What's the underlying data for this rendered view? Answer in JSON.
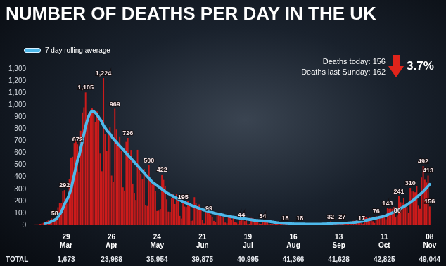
{
  "chart_data": {
    "type": "bar",
    "title": "NUMBER OF DEATHS PER DAY IN THE UK",
    "categories": [
      null,
      null,
      null,
      null,
      null,
      null,
      null,
      null,
      null,
      null,
      null,
      null,
      null,
      null,
      null,
      null,
      null,
      null,
      null,
      "29 Mar",
      null,
      null,
      null,
      null,
      null,
      null,
      null,
      null,
      null,
      null,
      null,
      null,
      null,
      null,
      null,
      null,
      null,
      null,
      null,
      null,
      null,
      null,
      null,
      null,
      null,
      null,
      null,
      "26 Apr",
      null,
      null,
      null,
      null,
      null,
      null,
      null,
      null,
      null,
      null,
      null,
      null,
      null,
      null,
      null,
      null,
      null,
      null,
      null,
      null,
      null,
      null,
      null,
      null,
      null,
      null,
      null,
      "24 May",
      null,
      null,
      null,
      null,
      null,
      null,
      null,
      null,
      null,
      null,
      null,
      null,
      null,
      null,
      null,
      null,
      null,
      null,
      null,
      null,
      null,
      null,
      null,
      null,
      null,
      null,
      null,
      "21 Jun",
      null,
      null,
      null,
      null,
      null,
      null,
      null,
      null,
      null,
      null,
      null,
      null,
      null,
      null,
      null,
      null,
      null,
      null,
      null,
      null,
      null,
      null,
      null,
      null,
      null,
      null,
      null,
      "19 Jul",
      null,
      null,
      null,
      null,
      null,
      null,
      null,
      null,
      null,
      null,
      null,
      null,
      null,
      null,
      null,
      null,
      null,
      null,
      null,
      null,
      null,
      null,
      null,
      null,
      null,
      null,
      null,
      "16 Aug",
      null,
      null,
      null,
      null,
      null,
      null,
      null,
      null,
      null,
      null,
      null,
      null,
      null,
      null,
      null,
      null,
      null,
      null,
      null,
      null,
      null,
      null,
      null,
      null,
      null,
      null,
      null,
      "13 Sep",
      null,
      null,
      null,
      null,
      null,
      null,
      null,
      null,
      null,
      null,
      null,
      null,
      null,
      null,
      null,
      null,
      null,
      null,
      null,
      null,
      null,
      null,
      null,
      null,
      null,
      null,
      null,
      "11 Oct",
      null,
      null,
      null,
      null,
      null,
      null,
      null,
      null,
      null,
      null,
      null,
      null,
      null,
      null,
      null,
      null,
      null,
      null,
      null,
      null,
      null,
      null,
      null,
      null,
      null,
      null,
      null,
      "08 Nov"
    ],
    "series": [
      {
        "type": "bar",
        "color": "#cc1b1b",
        "values": [
          1,
          2,
          1,
          10,
          14,
          20,
          16,
          33,
          40,
          33,
          56,
          48,
          58,
          74,
          149,
          186,
          183,
          284,
          292,
          209,
          180,
          381,
          563,
          569,
          684,
          708,
          672,
          439,
          786,
          938,
          981,
          1105,
          917,
          937,
          917,
          978,
          961,
          861,
          947,
          888,
          596,
          449,
          1224,
          759,
          616,
          768,
          813,
          413,
          360,
          969,
          795,
          674,
          739,
          621,
          315,
          288,
          693,
          726,
          539,
          626,
          346,
          269,
          210,
          627,
          494,
          428,
          384,
          468,
          170,
          160,
          500,
          363,
          338,
          351,
          282,
          118,
          121,
          134,
          422,
          377,
          324,
          215,
          113,
          111,
          224,
          259,
          176,
          257,
          204,
          77,
          55,
          195,
          155,
          151,
          202,
          181,
          36,
          38,
          233,
          184,
          135,
          173,
          128,
          43,
          15,
          120,
          110,
          99,
          86,
          70,
          36,
          25,
          89,
          96,
          89,
          67,
          67,
          22,
          16,
          85,
          85,
          48,
          68,
          28,
          21,
          11,
          38,
          44,
          66,
          34,
          40,
          11,
          7,
          60,
          59,
          27,
          23,
          39,
          14,
          7,
          34,
          38,
          40,
          36,
          12,
          8,
          5,
          16,
          10,
          14,
          12,
          7,
          5,
          3,
          18,
          12,
          10,
          11,
          8,
          6,
          3,
          9,
          12,
          18,
          10,
          8,
          6,
          3,
          16,
          16,
          12,
          9,
          2,
          1,
          6,
          3,
          7,
          10,
          12,
          2,
          2,
          3,
          32,
          8,
          14,
          6,
          9,
          5,
          9,
          27,
          20,
          21,
          16,
          14,
          18,
          11,
          37,
          37,
          40,
          35,
          34,
          17,
          13,
          71,
          66,
          59,
          66,
          49,
          33,
          19,
          76,
          70,
          77,
          87,
          65,
          65,
          50,
          143,
          137,
          138,
          136,
          150,
          67,
          80,
          241,
          191,
          189,
          224,
          174,
          151,
          102,
          310,
          280,
          280,
          274,
          326,
          162,
          136,
          397,
          492,
          378,
          355,
          413,
          156
        ],
        "value_labels": [
          null,
          null,
          null,
          null,
          null,
          null,
          null,
          null,
          null,
          null,
          null,
          null,
          "58",
          null,
          null,
          null,
          null,
          null,
          "292",
          null,
          null,
          null,
          null,
          null,
          null,
          null,
          "672",
          null,
          null,
          null,
          null,
          "1,105",
          null,
          null,
          null,
          null,
          null,
          null,
          null,
          null,
          null,
          null,
          "1,224",
          null,
          null,
          null,
          null,
          null,
          null,
          "969",
          null,
          null,
          null,
          null,
          null,
          null,
          null,
          "726",
          null,
          null,
          null,
          null,
          null,
          null,
          null,
          null,
          null,
          null,
          null,
          null,
          "500",
          null,
          null,
          null,
          null,
          null,
          null,
          null,
          "422",
          null,
          null,
          null,
          null,
          null,
          null,
          null,
          null,
          null,
          null,
          null,
          null,
          "195",
          null,
          null,
          null,
          null,
          null,
          null,
          null,
          null,
          null,
          null,
          null,
          null,
          null,
          null,
          null,
          "99",
          null,
          null,
          null,
          null,
          null,
          null,
          null,
          null,
          null,
          null,
          null,
          null,
          null,
          null,
          null,
          null,
          null,
          null,
          null,
          "44",
          null,
          null,
          null,
          null,
          null,
          null,
          null,
          null,
          null,
          null,
          null,
          null,
          "34",
          null,
          null,
          null,
          null,
          null,
          null,
          null,
          null,
          null,
          null,
          null,
          null,
          null,
          "18",
          null,
          null,
          null,
          null,
          null,
          null,
          null,
          null,
          "18",
          null,
          null,
          null,
          null,
          null,
          null,
          null,
          null,
          null,
          null,
          null,
          null,
          null,
          null,
          null,
          null,
          null,
          null,
          "32",
          null,
          null,
          null,
          null,
          null,
          null,
          "27",
          null,
          null,
          null,
          null,
          null,
          null,
          null,
          null,
          null,
          null,
          null,
          "17",
          null,
          null,
          null,
          null,
          null,
          null,
          null,
          null,
          "76",
          null,
          null,
          null,
          null,
          null,
          null,
          "143",
          null,
          null,
          null,
          null,
          null,
          "80",
          "241",
          null,
          null,
          null,
          null,
          null,
          null,
          "310",
          null,
          null,
          null,
          null,
          null,
          null,
          null,
          "492",
          null,
          null,
          "413",
          "156"
        ]
      },
      {
        "type": "line",
        "name": "7 day rolling average",
        "color": "#4db8ea",
        "values": [
          null,
          null,
          null,
          null,
          null,
          null,
          12,
          16,
          20,
          25,
          32,
          38,
          44,
          53,
          70,
          90,
          110,
          140,
          175,
          200,
          225,
          260,
          300,
          360,
          420,
          480,
          540,
          580,
          640,
          700,
          760,
          820,
          870,
          910,
          935,
          950,
          945,
          935,
          920,
          900,
          880,
          860,
          830,
          810,
          790,
          775,
          760,
          740,
          720,
          705,
          690,
          675,
          660,
          645,
          630,
          615,
          600,
          585,
          570,
          555,
          540,
          525,
          510,
          495,
          480,
          465,
          450,
          435,
          420,
          405,
          390,
          375,
          360,
          350,
          340,
          330,
          320,
          310,
          300,
          290,
          280,
          270,
          262,
          255,
          248,
          240,
          232,
          225,
          218,
          210,
          203,
          196,
          190,
          184,
          178,
          172,
          166,
          160,
          155,
          150,
          145,
          140,
          135,
          130,
          126,
          122,
          118,
          114,
          110,
          106,
          102,
          98,
          95,
          92,
          89,
          86,
          83,
          80,
          77,
          74,
          71,
          69,
          67,
          65,
          63,
          61,
          59,
          57,
          55,
          53,
          51,
          49,
          47,
          45,
          43,
          41,
          40,
          39,
          38,
          37,
          36,
          35,
          34,
          33,
          31,
          29,
          27,
          25,
          23,
          21,
          19,
          17,
          16,
          15,
          14,
          13,
          12,
          12,
          11,
          11,
          10,
          10,
          10,
          10,
          10,
          10,
          10,
          9,
          9,
          9,
          9,
          9,
          9,
          9,
          9,
          9,
          9,
          10,
          10,
          10,
          11,
          11,
          12,
          12,
          13,
          13,
          14,
          14,
          15,
          15,
          16,
          17,
          18,
          19,
          20,
          21,
          22,
          24,
          26,
          28,
          30,
          32,
          35,
          38,
          41,
          44,
          47,
          50,
          53,
          56,
          59,
          62,
          65,
          68,
          71,
          75,
          80,
          86,
          92,
          98,
          104,
          110,
          117,
          124,
          131,
          138,
          146,
          154,
          162,
          170,
          180,
          190,
          200,
          210,
          220,
          232,
          244,
          256,
          268,
          280,
          295,
          310,
          325,
          340
        ]
      }
    ],
    "ylim": [
      0,
      1300
    ],
    "yticks": [
      0,
      100,
      200,
      300,
      400,
      500,
      600,
      700,
      800,
      900,
      {
        "value": 1000,
        "label": "1,000"
      },
      {
        "value": 1100,
        "label": "1,100"
      },
      {
        "value": 1200,
        "label": "1,200"
      },
      {
        "value": 1300,
        "label": "1,300"
      }
    ],
    "grid": false,
    "legend": "top-left",
    "data_labels": true,
    "annotations": [
      "Deaths today: 156",
      "Deaths last Sunday: 162"
    ],
    "change": {
      "value": -3.7,
      "label": "3.7%"
    },
    "totals": {
      "label": "TOTAL",
      "values": [
        1673,
        23988,
        35954,
        39875,
        40995,
        41366,
        41628,
        42825,
        49044
      ]
    }
  }
}
